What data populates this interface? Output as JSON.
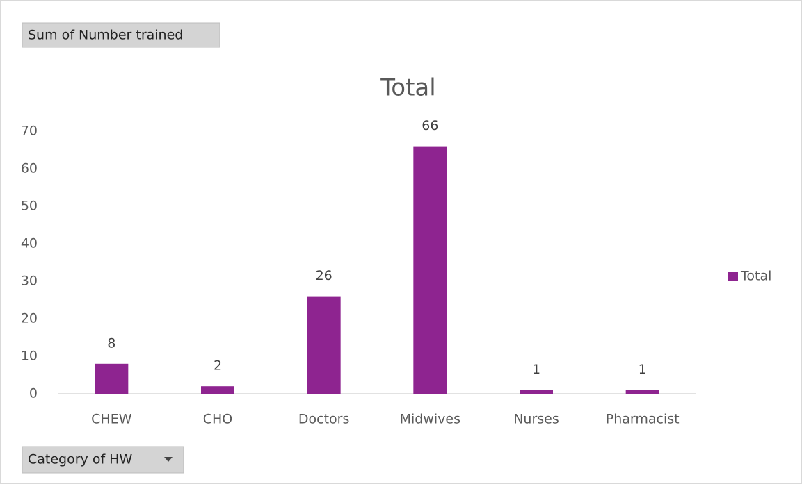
{
  "chart_data": {
    "type": "bar",
    "value_field_button": "Sum of Number trained",
    "axis_field_button": "Category of HW",
    "title": "Total",
    "categories": [
      "CHEW",
      "CHO",
      "Doctors",
      "Midwives",
      "Nurses",
      "Pharmacist"
    ],
    "series": [
      {
        "name": "Total",
        "color": "#8e2490",
        "values": [
          8,
          2,
          26,
          66,
          1,
          1
        ]
      }
    ],
    "ylim": [
      0,
      70
    ],
    "yticks": [
      0,
      10,
      20,
      30,
      40,
      50,
      60,
      70
    ],
    "grid": false,
    "data_labels": true,
    "legend": "right"
  }
}
